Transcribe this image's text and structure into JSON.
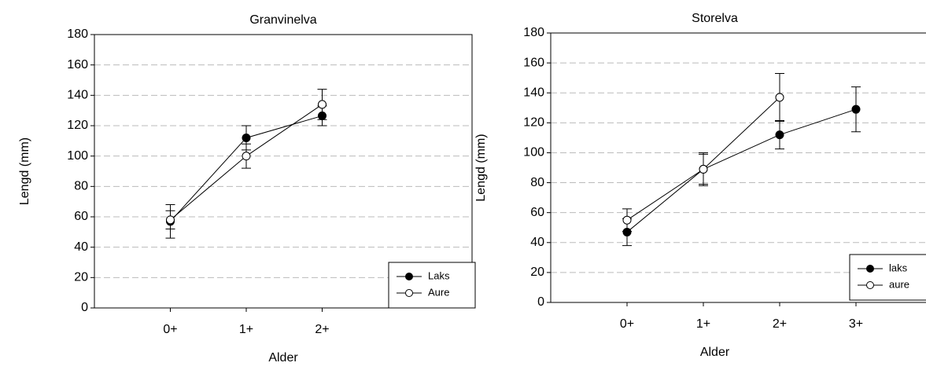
{
  "chart_data": [
    {
      "type": "line",
      "title": "Granvinelva",
      "xlabel": "Alder",
      "ylabel": "Lengd (mm)",
      "categories": [
        "0+",
        "1+",
        "2+"
      ],
      "ylim": [
        0,
        180
      ],
      "yticks": [
        0,
        20,
        40,
        60,
        80,
        100,
        120,
        140,
        160,
        180
      ],
      "grid": true,
      "legend": "lower right",
      "series": [
        {
          "name": "Laks",
          "color": "#000000",
          "marker": "filled",
          "values": [
            57,
            112,
            126.5
          ],
          "errors": [
            11,
            8,
            6.5
          ]
        },
        {
          "name": "Aure",
          "color": "#000000",
          "marker": "open",
          "values": [
            58,
            100,
            134
          ],
          "errors": [
            6,
            8,
            10
          ]
        }
      ]
    },
    {
      "type": "line",
      "title": "Storelva",
      "xlabel": "Alder",
      "ylabel": "Lengd (mm)",
      "categories": [
        "0+",
        "1+",
        "2+",
        "3+"
      ],
      "ylim": [
        0,
        180
      ],
      "yticks": [
        0,
        20,
        40,
        60,
        80,
        100,
        120,
        140,
        160,
        180
      ],
      "grid": true,
      "legend": "lower right",
      "series": [
        {
          "name": "laks",
          "color": "#000000",
          "marker": "filled",
          "values": [
            47,
            89,
            112,
            129
          ],
          "errors": [
            9,
            10,
            9.5,
            15
          ]
        },
        {
          "name": "aure",
          "color": "#000000",
          "marker": "open",
          "values": [
            55,
            89,
            137,
            null
          ],
          "errors": [
            7.5,
            11,
            16,
            null
          ]
        }
      ]
    }
  ]
}
